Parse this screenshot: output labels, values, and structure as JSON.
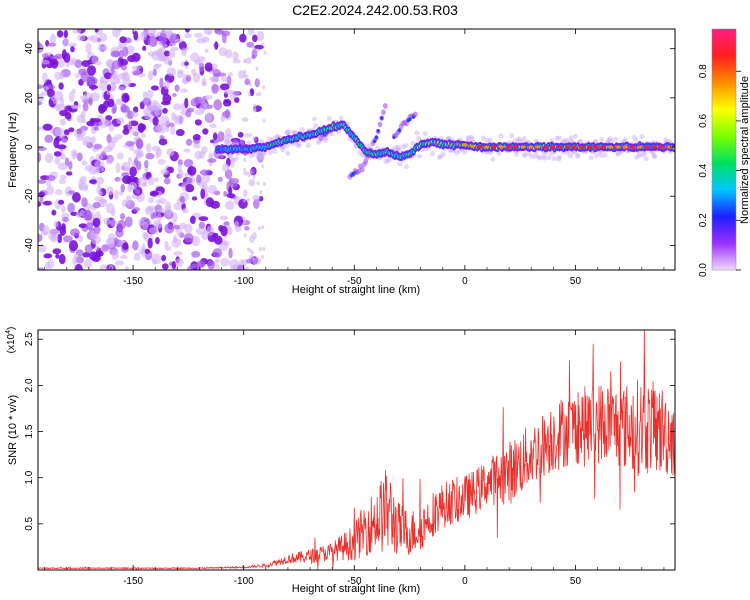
{
  "title": "C2E2.2024.242.00.53.R03",
  "colors": {
    "axis": "#000000",
    "scatter": "#7b1fd6",
    "snr_line": "#e8312d",
    "background": "#ffffff"
  },
  "colorbar": {
    "label": "Normalized spectral amplitude",
    "ticks": [
      "0.0",
      "0.2",
      "0.4",
      "0.6",
      "0.8"
    ],
    "tick_values": [
      0.0,
      0.2,
      0.4,
      0.6,
      0.8
    ],
    "range": [
      0,
      0.97
    ],
    "stops": [
      "#f0d8ff",
      "#9b30ff",
      "#1e1eff",
      "#00c8ff",
      "#00e060",
      "#7cff00",
      "#ffff00",
      "#ff8c00",
      "#ff1e1e",
      "#ff2080"
    ]
  },
  "chart_data": [
    {
      "type": "heatmap",
      "xlabel": "Height of straight line (km)",
      "ylabel": "Frequency (Hz)",
      "xlim": [
        -193,
        95
      ],
      "ylim": [
        -50,
        48
      ],
      "xticks": [
        -150,
        -100,
        -50,
        0,
        50
      ],
      "xtick_labels": [
        "-150",
        "-100",
        "-50",
        "0",
        "50"
      ],
      "yticks": [
        -40,
        -20,
        0,
        20,
        40
      ],
      "ytick_labels": [
        "-40",
        "-20",
        "0",
        "20",
        "40"
      ],
      "noise_region_x": [
        -193,
        -100
      ],
      "ridge": {
        "x": [
          -112,
          -100,
          -90,
          -80,
          -70,
          -60,
          -55,
          -50,
          -45,
          -40,
          -35,
          -30,
          -25,
          -20,
          -15,
          -10,
          -5,
          0,
          5,
          10,
          20,
          30,
          40,
          50,
          60,
          70,
          80,
          95
        ],
        "y": [
          -1,
          -1,
          0,
          3,
          5,
          8,
          9,
          4,
          -2,
          -3,
          -2,
          -4,
          -3,
          1,
          2,
          1,
          1,
          1,
          0,
          0,
          0,
          0,
          0,
          0,
          0,
          0,
          0,
          0
        ],
        "amplitude": [
          0.3,
          0.35,
          0.4,
          0.45,
          0.45,
          0.5,
          0.5,
          0.45,
          0.45,
          0.45,
          0.45,
          0.45,
          0.5,
          0.55,
          0.6,
          0.6,
          0.65,
          0.7,
          0.75,
          0.8,
          0.85,
          0.85,
          0.85,
          0.85,
          0.85,
          0.85,
          0.85,
          0.8
        ]
      },
      "branches": [
        {
          "x": [
            -52,
            -46,
            -40,
            -36
          ],
          "y": [
            -12,
            -8,
            4,
            17
          ],
          "amplitude": 0.3
        },
        {
          "x": [
            -32,
            -27,
            -22
          ],
          "y": [
            4,
            10,
            13
          ],
          "amplitude": 0.2
        },
        {
          "x": [
            -65,
            -58
          ],
          "y": [
            4,
            9
          ],
          "amplitude": 0.25
        }
      ]
    },
    {
      "type": "line",
      "xlabel": "Height of straight line (km)",
      "ylabel": "SNR (10 * v/v)",
      "scale_note": "(x10⁴)",
      "scale_base": "(x10",
      "scale_exp": "4",
      "xlim": [
        -193,
        95
      ],
      "ylim": [
        0,
        2.6
      ],
      "xticks": [
        -150,
        -100,
        -50,
        0,
        50
      ],
      "xtick_labels": [
        "-150",
        "-100",
        "-50",
        "0",
        "50"
      ],
      "yticks": [
        0.5,
        1.0,
        1.5,
        2.0,
        2.5
      ],
      "ytick_labels": [
        "0.5",
        "1.0",
        "1.5",
        "2.0",
        "2.5"
      ],
      "series": [
        {
          "x": [
            -193,
            -150,
            -120,
            -100,
            -90,
            -80,
            -70,
            -60,
            -50,
            -45,
            -40,
            -35,
            -30,
            -25,
            -20,
            -15,
            -10,
            -5,
            0,
            5,
            10,
            15,
            20,
            25,
            30,
            35,
            40,
            45,
            50,
            55,
            60,
            65,
            70,
            75,
            80,
            85,
            90,
            95
          ],
          "y": [
            0.02,
            0.02,
            0.02,
            0.03,
            0.05,
            0.12,
            0.15,
            0.2,
            0.3,
            0.45,
            0.55,
            0.65,
            0.45,
            0.4,
            0.45,
            0.6,
            0.7,
            0.75,
            0.78,
            0.85,
            0.95,
            1.0,
            1.05,
            1.15,
            1.25,
            1.35,
            1.45,
            1.5,
            1.55,
            1.55,
            1.6,
            1.6,
            1.55,
            1.55,
            1.55,
            1.55,
            1.5,
            1.45
          ],
          "noise_amplitude": [
            0.005,
            0.005,
            0.005,
            0.01,
            0.02,
            0.05,
            0.08,
            0.1,
            0.2,
            0.3,
            0.35,
            0.5,
            0.3,
            0.25,
            0.25,
            0.25,
            0.25,
            0.25,
            0.25,
            0.25,
            0.25,
            0.3,
            0.35,
            0.35,
            0.35,
            0.35,
            0.4,
            0.4,
            0.4,
            0.45,
            0.45,
            0.45,
            0.45,
            0.5,
            0.55,
            0.5,
            0.5,
            0.45
          ]
        }
      ]
    }
  ]
}
